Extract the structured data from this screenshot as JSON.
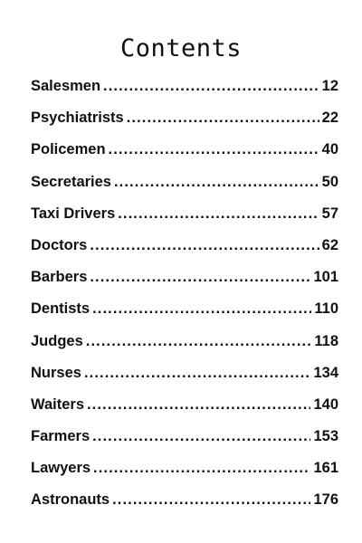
{
  "title": "Contents",
  "entries": [
    {
      "label": "Salesmen",
      "page": "12"
    },
    {
      "label": "Psychiatrists",
      "page": "22"
    },
    {
      "label": "Policemen",
      "page": "40"
    },
    {
      "label": "Secretaries",
      "page": "50"
    },
    {
      "label": "Taxi Drivers",
      "page": "57"
    },
    {
      "label": "Doctors",
      "page": "62"
    },
    {
      "label": "Barbers",
      "page": "101"
    },
    {
      "label": "Dentists",
      "page": "110"
    },
    {
      "label": "Judges",
      "page": "118"
    },
    {
      "label": "Nurses",
      "page": "134"
    },
    {
      "label": "Waiters",
      "page": "140"
    },
    {
      "label": "Farmers",
      "page": "153"
    },
    {
      "label": "Lawyers",
      "page": "161"
    },
    {
      "label": "Astronauts",
      "page": "176"
    }
  ]
}
